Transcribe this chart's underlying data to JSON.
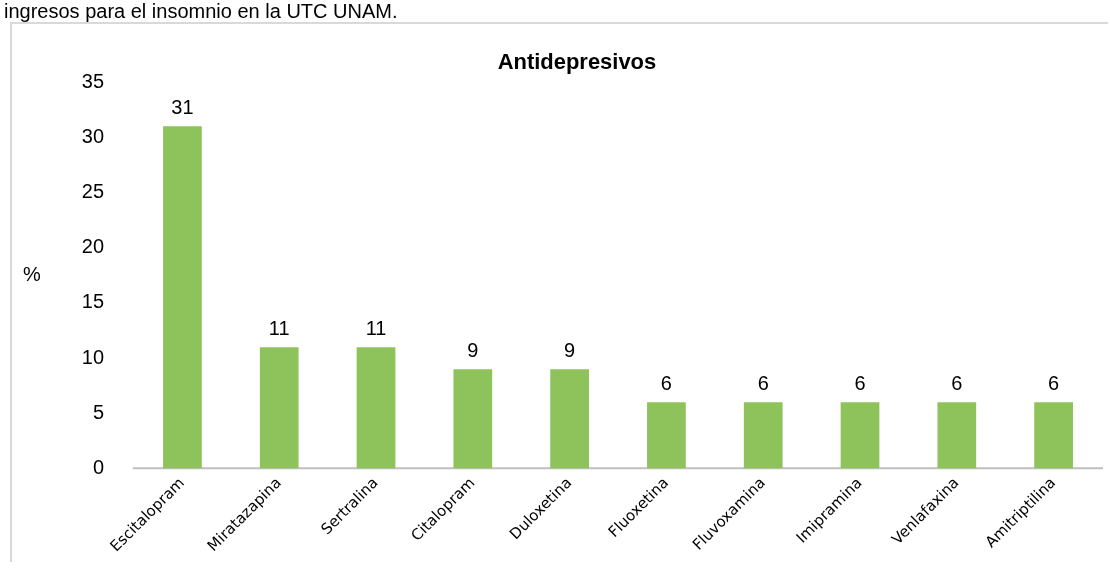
{
  "chart_data": {
    "type": "bar",
    "title": "Antidepresivos",
    "ylabel": "%",
    "annotations": [
      "ingresos para el insomnio en la UTC UNAM."
    ],
    "categories": [
      "Escitalopram",
      "Miratazapina",
      "Sertralina",
      "Citalopram",
      "Duloxetina",
      "Fluoxetina",
      "Fluvoxamina",
      "Imipramina",
      "Venlafaxina",
      "Amitriptilina"
    ],
    "values": [
      31,
      11,
      11,
      9,
      9,
      6,
      6,
      6,
      6,
      6
    ],
    "color": "#8dc35a",
    "ylim": [
      0,
      35
    ],
    "yticks": [
      0,
      5,
      10,
      15,
      20,
      25,
      30,
      35
    ],
    "grid": false,
    "legend": false,
    "data_labels": true
  }
}
